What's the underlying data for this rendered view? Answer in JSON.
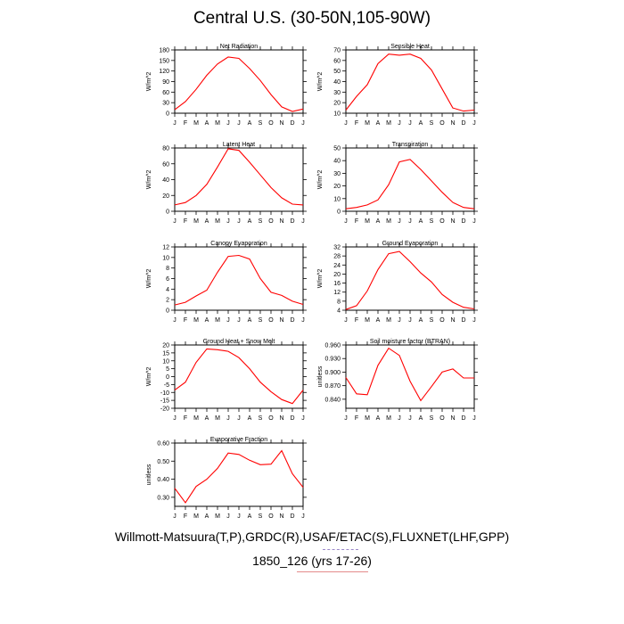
{
  "title": "Central U.S. (30-50N,105-90W)",
  "footer": {
    "line1": "Willmott-Matsuura(T,P),GRDC(R),USAF/ETAC(S),FLUXNET(LHF,GPP)",
    "line2": "1850_126 (yrs 17-26)"
  },
  "colors": {
    "line": "#ff0000",
    "axis": "#000000"
  },
  "chart_data": [
    {
      "type": "line",
      "title": "Net Radiation",
      "ylabel": "W/m^2",
      "categories": [
        "J",
        "F",
        "M",
        "A",
        "M",
        "J",
        "J",
        "A",
        "S",
        "O",
        "N",
        "D",
        "J"
      ],
      "ylim": [
        0,
        180
      ],
      "yticks": [
        0,
        30,
        60,
        90,
        120,
        150,
        180
      ],
      "yticklabels": [
        "0",
        "30",
        "60",
        "90",
        "120",
        "150",
        "180"
      ],
      "values": [
        10,
        33,
        68,
        108,
        140,
        160,
        156,
        127,
        93,
        53,
        18,
        5,
        12
      ]
    },
    {
      "type": "line",
      "title": "Sensible Heat",
      "ylabel": "W/m^2",
      "categories": [
        "J",
        "F",
        "M",
        "A",
        "M",
        "J",
        "J",
        "A",
        "S",
        "O",
        "N",
        "D",
        "J"
      ],
      "ylim": [
        10,
        70
      ],
      "yticks": [
        10,
        20,
        30,
        40,
        50,
        60,
        70
      ],
      "yticklabels": [
        "10",
        "20",
        "30",
        "40",
        "50",
        "60",
        "70"
      ],
      "values": [
        13,
        26,
        37,
        57,
        66,
        65,
        66,
        62,
        51,
        33,
        15,
        12,
        13
      ]
    },
    {
      "type": "line",
      "title": "Latent Heat",
      "ylabel": "W/m^2",
      "categories": [
        "J",
        "F",
        "M",
        "A",
        "M",
        "J",
        "J",
        "A",
        "S",
        "O",
        "N",
        "D",
        "J"
      ],
      "ylim": [
        0,
        80
      ],
      "yticks": [
        0,
        20,
        40,
        60,
        80
      ],
      "yticklabels": [
        "0",
        "20",
        "40",
        "60",
        "80"
      ],
      "values": [
        8,
        11,
        20,
        34,
        56,
        79,
        77,
        62,
        46,
        30,
        17,
        9,
        8
      ]
    },
    {
      "type": "line",
      "title": "Transpiration",
      "ylabel": "W/m^2",
      "categories": [
        "J",
        "F",
        "M",
        "A",
        "M",
        "J",
        "J",
        "A",
        "S",
        "O",
        "N",
        "D",
        "J"
      ],
      "ylim": [
        0,
        50
      ],
      "yticks": [
        0,
        10,
        20,
        30,
        40,
        50
      ],
      "yticklabels": [
        "0",
        "10",
        "20",
        "30",
        "40",
        "50"
      ],
      "values": [
        2,
        3,
        5,
        9,
        21,
        39,
        41,
        33,
        24,
        15,
        7,
        3,
        2
      ]
    },
    {
      "type": "line",
      "title": "Canopy Evaporation",
      "ylabel": "W/m^2",
      "categories": [
        "J",
        "F",
        "M",
        "A",
        "M",
        "J",
        "J",
        "A",
        "S",
        "O",
        "N",
        "D",
        "J"
      ],
      "ylim": [
        0,
        12
      ],
      "yticks": [
        0,
        2,
        4,
        6,
        8,
        10,
        12
      ],
      "yticklabels": [
        "0",
        "2",
        "4",
        "6",
        "8",
        "10",
        "12"
      ],
      "values": [
        1,
        1.5,
        2.7,
        3.8,
        7.2,
        10.2,
        10.4,
        9.7,
        6.0,
        3.4,
        2.8,
        1.7,
        1.1
      ]
    },
    {
      "type": "line",
      "title": "Ground Evaporation",
      "ylabel": "W/m^2",
      "categories": [
        "J",
        "F",
        "M",
        "A",
        "M",
        "J",
        "J",
        "A",
        "S",
        "O",
        "N",
        "D",
        "J"
      ],
      "ylim": [
        4,
        32
      ],
      "yticks": [
        4,
        8,
        12,
        16,
        20,
        24,
        28,
        32
      ],
      "yticklabels": [
        "4",
        "8",
        "12",
        "16",
        "20",
        "24",
        "28",
        "32"
      ],
      "values": [
        4.3,
        6,
        12.5,
        22,
        29,
        30,
        25.5,
        20.5,
        16.5,
        11,
        7.5,
        5.3,
        4.6
      ]
    },
    {
      "type": "line",
      "title": "Ground Heat + Snow Melt",
      "ylabel": "W/m^2",
      "categories": [
        "J",
        "F",
        "M",
        "A",
        "M",
        "J",
        "J",
        "A",
        "S",
        "O",
        "N",
        "D",
        "J"
      ],
      "ylim": [
        -20,
        20
      ],
      "yticks": [
        -20,
        -15,
        -10,
        -5,
        0,
        5,
        10,
        15,
        20
      ],
      "yticklabels": [
        "-20",
        "-15",
        "-10",
        "-5",
        "0",
        "5",
        "10",
        "15",
        "20"
      ],
      "values": [
        -8.5,
        -3.5,
        9,
        17.5,
        17,
        16,
        12,
        5,
        -3.5,
        -9.5,
        -14.5,
        -17,
        -8.5
      ]
    },
    {
      "type": "line",
      "title": "Soil moisture factor (BTRAN)",
      "ylabel": "unitless",
      "categories": [
        "J",
        "F",
        "M",
        "A",
        "M",
        "J",
        "J",
        "A",
        "S",
        "O",
        "N",
        "D",
        "J"
      ],
      "ylim": [
        0.82,
        0.96
      ],
      "yticks": [
        0.84,
        0.87,
        0.9,
        0.93,
        0.96
      ],
      "yticklabels": [
        "0.840",
        "0.870",
        "0.900",
        "0.930",
        "0.960"
      ],
      "values": [
        0.888,
        0.852,
        0.85,
        0.915,
        0.953,
        0.937,
        0.88,
        0.837,
        0.868,
        0.9,
        0.907,
        0.887,
        0.887
      ]
    },
    {
      "type": "line",
      "title": "Evaporative Fraction",
      "ylabel": "unitless",
      "categories": [
        "J",
        "F",
        "M",
        "A",
        "M",
        "J",
        "J",
        "A",
        "S",
        "O",
        "N",
        "D",
        "J"
      ],
      "ylim": [
        0.25,
        0.6
      ],
      "yticks": [
        0.3,
        0.4,
        0.5,
        0.6
      ],
      "yticklabels": [
        "0.30",
        "0.40",
        "0.50",
        "0.60"
      ],
      "values": [
        0.35,
        0.27,
        0.36,
        0.4,
        0.46,
        0.545,
        0.537,
        0.505,
        0.48,
        0.483,
        0.558,
        0.43,
        0.355
      ]
    }
  ]
}
